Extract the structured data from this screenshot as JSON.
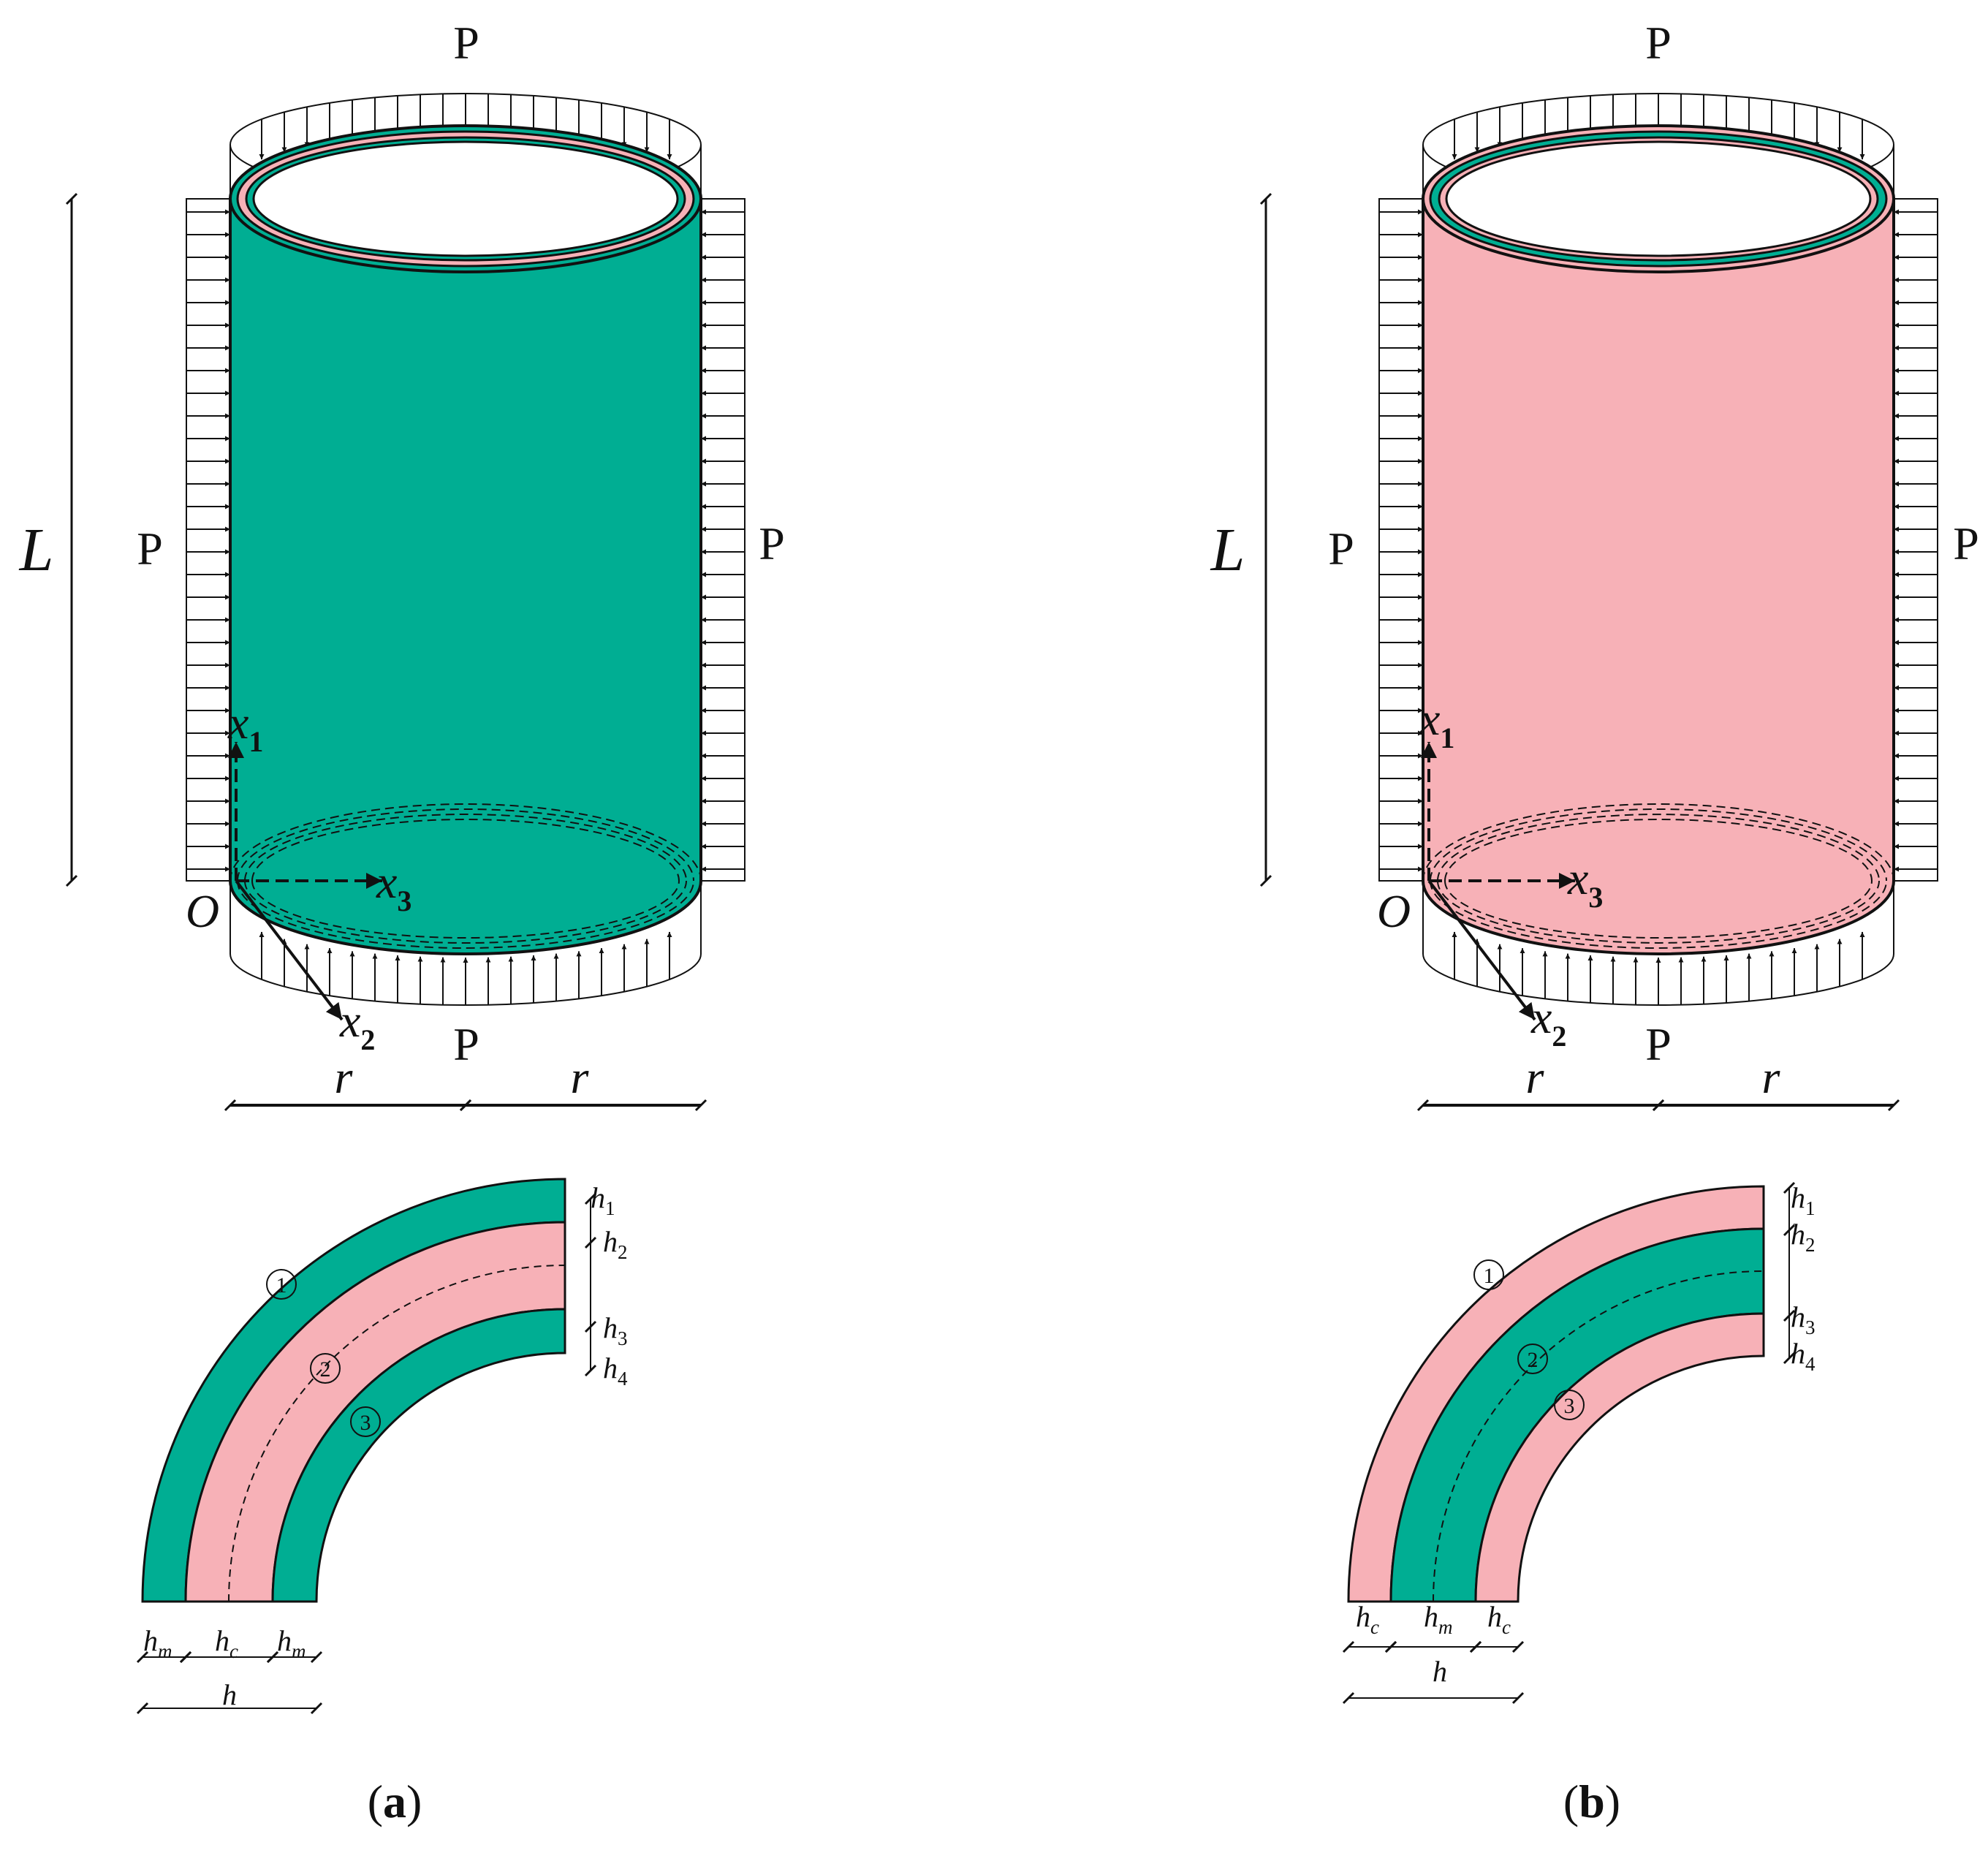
{
  "labels": {
    "load": "P",
    "length": "L",
    "origin": "O",
    "radius": "r",
    "axis_var": "x",
    "x1_sub": "1",
    "x2_sub": "2",
    "x3_sub": "3",
    "h_var": "h",
    "h1_sub": "1",
    "h2_sub": "2",
    "h3_sub": "3",
    "h4_sub": "4",
    "m_sub": "m",
    "c_sub": "c",
    "layer1": "1",
    "layer2": "2",
    "layer3": "3"
  },
  "captions": {
    "a_open": "(",
    "a_letter": "a",
    "a_close": ")",
    "b_open": "(",
    "b_letter": "b",
    "b_close": ")"
  },
  "colors": {
    "metal": "#00ae93",
    "ceramic": "#f7b1b7",
    "line": "#111111"
  },
  "panels": [
    {
      "id": "a",
      "outer_layer": "metal",
      "core_layer": "ceramic",
      "bottom_dims": [
        "h_m",
        "h_c",
        "h_m"
      ]
    },
    {
      "id": "b",
      "outer_layer": "ceramic",
      "core_layer": "metal",
      "bottom_dims": [
        "h_c",
        "h_m",
        "h_c"
      ]
    }
  ]
}
